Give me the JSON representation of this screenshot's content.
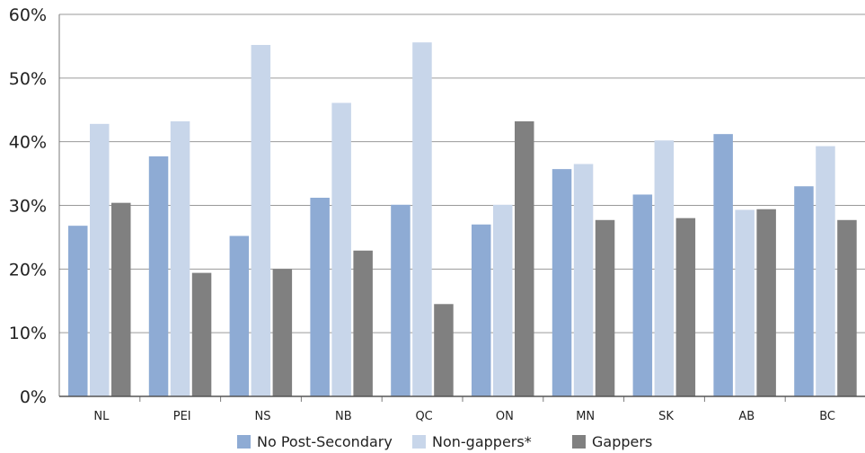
{
  "chart_data": {
    "type": "bar",
    "title": "",
    "xlabel": "",
    "ylabel": "",
    "ylim": [
      0,
      60
    ],
    "y_ticks": [
      "0%",
      "10%",
      "20%",
      "30%",
      "40%",
      "50%",
      "60%"
    ],
    "grid": "horizontal",
    "legend_position": "bottom",
    "categories": [
      "NL",
      "PEI",
      "NS",
      "NB",
      "QC",
      "ON",
      "MN",
      "SK",
      "AB",
      "BC"
    ],
    "series": [
      {
        "name": "No Post-Secondary",
        "color": "#8eabd4",
        "values": [
          26.8,
          37.7,
          25.2,
          31.2,
          30.1,
          27.0,
          35.7,
          31.7,
          41.2,
          33.0
        ]
      },
      {
        "name": "Non-gappers*",
        "color": "#c8d6ea",
        "values": [
          42.8,
          43.2,
          55.2,
          46.1,
          55.6,
          30.1,
          36.5,
          40.2,
          29.3,
          39.3
        ]
      },
      {
        "name": "Gappers",
        "color": "#808080",
        "values": [
          30.4,
          19.4,
          20.0,
          22.9,
          14.5,
          43.2,
          27.7,
          28.0,
          29.4,
          27.7
        ]
      }
    ]
  }
}
